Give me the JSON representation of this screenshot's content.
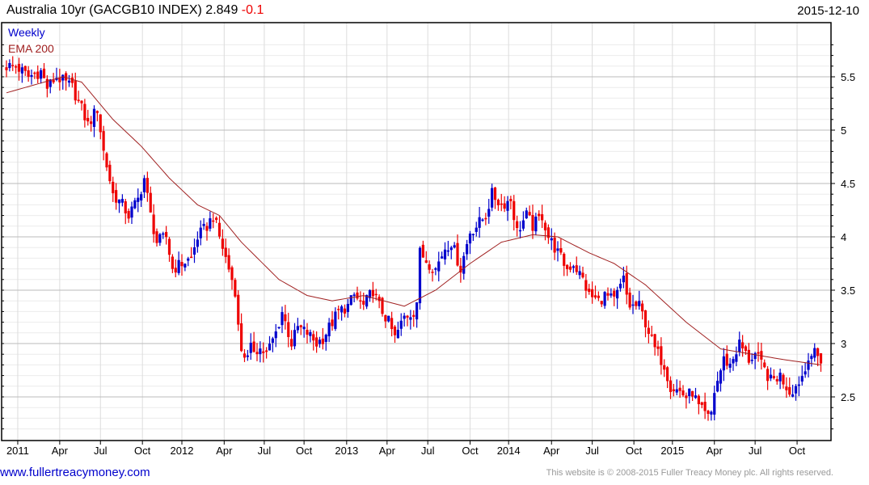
{
  "header": {
    "title": "Australia 10yr (GACGB10 INDEX) 2.849",
    "change": "-0.1",
    "date": "2015-12-10"
  },
  "footer": {
    "site": "www.fullertreacymoney.com",
    "copyright": "This website is © 2008-2015 Fuller Treacy Money plc. All rights reserved."
  },
  "colors": {
    "up": "#0000cc",
    "down": "#ee0000",
    "ema": "#a02020"
  },
  "chart_data": {
    "type": "candlestick",
    "title": "Australia 10yr (GACGB10 INDEX)",
    "last": 2.849,
    "change": -0.1,
    "legend": [
      "Weekly",
      "EMA 200"
    ],
    "x_unit": "weeks since first bar",
    "ylim": [
      2.1,
      5.9
    ],
    "yticks": [
      {
        "v": 2.5,
        "label": "2.5"
      },
      {
        "v": 3,
        "label": "3"
      },
      {
        "v": 3.5,
        "label": "3.5"
      },
      {
        "v": 4,
        "label": "4"
      },
      {
        "v": 4.5,
        "label": "4.5"
      },
      {
        "v": 5,
        "label": "5"
      },
      {
        "v": 5.5,
        "label": "5.5"
      }
    ],
    "xticks": [
      {
        "w": 3.6,
        "label": "2011"
      },
      {
        "w": 17,
        "label": "Apr"
      },
      {
        "w": 30,
        "label": "Jul"
      },
      {
        "w": 43.4,
        "label": "Oct"
      },
      {
        "w": 56,
        "label": "2012"
      },
      {
        "w": 69.5,
        "label": "Apr"
      },
      {
        "w": 82.3,
        "label": "Jul"
      },
      {
        "w": 95,
        "label": "Oct"
      },
      {
        "w": 108.6,
        "label": "2013"
      },
      {
        "w": 121.5,
        "label": "Apr"
      },
      {
        "w": 134.5,
        "label": "Jul"
      },
      {
        "w": 148,
        "label": "Oct"
      },
      {
        "w": 160.3,
        "label": "2014"
      },
      {
        "w": 174,
        "label": "Apr"
      },
      {
        "w": 187,
        "label": "Jul"
      },
      {
        "w": 200.3,
        "label": "Oct"
      },
      {
        "w": 212.6,
        "label": "2015"
      },
      {
        "w": 226,
        "label": "Apr"
      },
      {
        "w": 239,
        "label": "Jul"
      },
      {
        "w": 252.4,
        "label": "Oct"
      }
    ],
    "weekly_close": [
      [
        0,
        5.6
      ],
      [
        3,
        5.6
      ],
      [
        7,
        5.5
      ],
      [
        11,
        5.55
      ],
      [
        13,
        5.4
      ],
      [
        16,
        5.5
      ],
      [
        21,
        5.4
      ],
      [
        24,
        5.2
      ],
      [
        26,
        5.05
      ],
      [
        29,
        5.2
      ],
      [
        30,
        5.0
      ],
      [
        31,
        4.8
      ],
      [
        34,
        4.4
      ],
      [
        37,
        4.3
      ],
      [
        39,
        4.2
      ],
      [
        42,
        4.35
      ],
      [
        44,
        4.55
      ],
      [
        46,
        4.2
      ],
      [
        48,
        3.95
      ],
      [
        51,
        4.0
      ],
      [
        53,
        3.7
      ],
      [
        56,
        3.75
      ],
      [
        59,
        3.8
      ],
      [
        61,
        4.0
      ],
      [
        64,
        4.1
      ],
      [
        66,
        4.2
      ],
      [
        68,
        4.0
      ],
      [
        70,
        3.8
      ],
      [
        73,
        3.5
      ],
      [
        74,
        3.15
      ],
      [
        75,
        2.95
      ],
      [
        77,
        2.85
      ],
      [
        78,
        2.95
      ],
      [
        81,
        2.95
      ],
      [
        83,
        2.9
      ],
      [
        86,
        3.1
      ],
      [
        88,
        3.3
      ],
      [
        91,
        3.0
      ],
      [
        93,
        3.15
      ],
      [
        96,
        3.1
      ],
      [
        99,
        3.0
      ],
      [
        101,
        3.05
      ],
      [
        104,
        3.2
      ],
      [
        106,
        3.3
      ],
      [
        109,
        3.35
      ],
      [
        111,
        3.45
      ],
      [
        114,
        3.35
      ],
      [
        117,
        3.5
      ],
      [
        119,
        3.35
      ],
      [
        122,
        3.2
      ],
      [
        124,
        3.05
      ],
      [
        127,
        3.25
      ],
      [
        130,
        3.3
      ],
      [
        131,
        3.4
      ],
      [
        132,
        3.85
      ],
      [
        135,
        3.75
      ],
      [
        137,
        3.7
      ],
      [
        140,
        3.9
      ],
      [
        142,
        3.95
      ],
      [
        145,
        3.7
      ],
      [
        148,
        4.05
      ],
      [
        150,
        4.1
      ],
      [
        153,
        4.2
      ],
      [
        155,
        4.4
      ],
      [
        158,
        4.3
      ],
      [
        161,
        4.35
      ],
      [
        163,
        4.05
      ],
      [
        166,
        4.2
      ],
      [
        168,
        4.1
      ],
      [
        171,
        4.2
      ],
      [
        173,
        4.0
      ],
      [
        176,
        3.85
      ],
      [
        179,
        3.7
      ],
      [
        181,
        3.75
      ],
      [
        184,
        3.6
      ],
      [
        186,
        3.45
      ],
      [
        189,
        3.4
      ],
      [
        191,
        3.45
      ],
      [
        194,
        3.4
      ],
      [
        197,
        3.6
      ],
      [
        198,
        3.45
      ],
      [
        199,
        3.35
      ],
      [
        202,
        3.35
      ],
      [
        204,
        3.2
      ],
      [
        207,
        2.95
      ],
      [
        210,
        2.8
      ],
      [
        212,
        2.6
      ],
      [
        215,
        2.55
      ],
      [
        217,
        2.5
      ],
      [
        219,
        2.55
      ],
      [
        221,
        2.4
      ],
      [
        224,
        2.3
      ],
      [
        225,
        2.35
      ],
      [
        226,
        2.55
      ],
      [
        229,
        2.85
      ],
      [
        231,
        2.8
      ],
      [
        234,
        3.0
      ],
      [
        237,
        2.85
      ],
      [
        239,
        2.9
      ],
      [
        242,
        2.75
      ],
      [
        244,
        2.65
      ],
      [
        247,
        2.7
      ],
      [
        250,
        2.55
      ],
      [
        252,
        2.6
      ],
      [
        255,
        2.75
      ],
      [
        256,
        2.9
      ],
      [
        258,
        2.9
      ],
      [
        260,
        2.85
      ]
    ],
    "ema200": [
      [
        0,
        5.35
      ],
      [
        18,
        5.5
      ],
      [
        24,
        5.45
      ],
      [
        34,
        5.1
      ],
      [
        43,
        4.85
      ],
      [
        52,
        4.55
      ],
      [
        61,
        4.3
      ],
      [
        68,
        4.2
      ],
      [
        75,
        3.95
      ],
      [
        87,
        3.6
      ],
      [
        96,
        3.45
      ],
      [
        104,
        3.4
      ],
      [
        114,
        3.45
      ],
      [
        127,
        3.35
      ],
      [
        137,
        3.5
      ],
      [
        148,
        3.75
      ],
      [
        158,
        3.95
      ],
      [
        168,
        4.02
      ],
      [
        176,
        4.0
      ],
      [
        186,
        3.85
      ],
      [
        194,
        3.75
      ],
      [
        204,
        3.55
      ],
      [
        217,
        3.2
      ],
      [
        228,
        2.95
      ],
      [
        238,
        2.9
      ],
      [
        248,
        2.85
      ],
      [
        260,
        2.8
      ]
    ]
  }
}
